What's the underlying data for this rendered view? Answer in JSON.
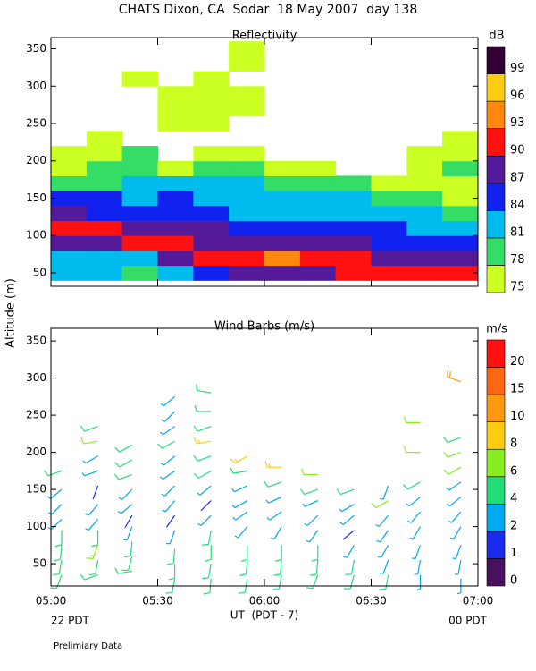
{
  "page": {
    "title": "CHATS Dixon, CA  Sodar  18 May 2007  day 138",
    "ylabel": "Altitude (m)",
    "xlabel": "UT  (PDT - 7)",
    "left_note": "22 PDT",
    "right_note": "00 PDT",
    "note": "Prelimiary Data"
  },
  "chart_data": [
    {
      "type": "contour",
      "title": "Reflectivity",
      "colorbar_label": "dB",
      "xlim": [
        5,
        7
      ],
      "xticks": [
        5,
        5.5,
        6,
        6.5,
        7
      ],
      "ylim": [
        32,
        365
      ],
      "yticks": [
        50,
        100,
        150,
        200,
        250,
        300,
        350
      ],
      "levels": [
        75,
        78,
        81,
        84,
        87,
        90,
        93,
        96,
        99
      ],
      "colors": [
        "#ccff22",
        "#33dd66",
        "#00bbee",
        "#1122ee",
        "#551a99",
        "#ff1111",
        "#ff8811",
        "#ffcc11",
        "#330033"
      ],
      "x_edges": [
        5,
        5.167,
        5.333,
        5.5,
        5.667,
        5.833,
        6,
        6.167,
        6.333,
        6.5,
        6.667,
        6.833,
        7
      ],
      "y_edges": [
        40,
        60,
        80,
        100,
        120,
        140,
        160,
        180,
        200,
        220,
        240,
        260,
        280,
        300,
        320,
        340,
        360
      ],
      "values": [
        [
          81,
          81,
          78,
          81,
          84,
          87,
          87,
          87,
          90,
          90,
          90,
          90
        ],
        [
          81,
          81,
          81,
          87,
          90,
          90,
          93,
          90,
          90,
          87,
          87,
          87
        ],
        [
          87,
          87,
          90,
          90,
          87,
          87,
          87,
          87,
          87,
          84,
          84,
          84
        ],
        [
          90,
          90,
          87,
          87,
          87,
          84,
          84,
          84,
          84,
          84,
          81,
          81
        ],
        [
          87,
          84,
          84,
          84,
          84,
          81,
          81,
          81,
          81,
          81,
          81,
          78
        ],
        [
          84,
          84,
          81,
          84,
          81,
          81,
          81,
          81,
          81,
          78,
          78,
          75
        ],
        [
          78,
          78,
          81,
          81,
          81,
          81,
          78,
          78,
          78,
          75,
          75,
          75
        ],
        [
          75,
          78,
          78,
          75,
          78,
          78,
          75,
          75,
          null,
          null,
          75,
          78
        ],
        [
          75,
          75,
          78,
          null,
          75,
          75,
          null,
          null,
          null,
          null,
          75,
          75
        ],
        [
          null,
          75,
          null,
          null,
          null,
          null,
          null,
          null,
          null,
          null,
          null,
          75
        ],
        [
          null,
          null,
          null,
          75,
          75,
          null,
          null,
          null,
          null,
          null,
          null,
          null
        ],
        [
          null,
          null,
          null,
          75,
          75,
          75,
          null,
          null,
          null,
          null,
          null,
          null
        ],
        [
          null,
          null,
          null,
          75,
          75,
          75,
          null,
          null,
          null,
          null,
          null,
          null
        ],
        [
          null,
          null,
          75,
          null,
          75,
          null,
          null,
          null,
          null,
          null,
          null,
          null
        ],
        [
          null,
          null,
          null,
          null,
          null,
          75,
          null,
          null,
          null,
          null,
          null,
          null
        ],
        [
          null,
          null,
          null,
          null,
          null,
          75,
          null,
          null,
          null,
          null,
          null,
          null
        ]
      ]
    },
    {
      "type": "barbs",
      "title": "Wind Barbs (m/s)",
      "colorbar_label": "m/s",
      "xlim": [
        5,
        7
      ],
      "xticks": [
        {
          "value": 5,
          "label": "05:00"
        },
        {
          "value": 5.5,
          "label": "05:30"
        },
        {
          "value": 6,
          "label": "06:00"
        },
        {
          "value": 6.5,
          "label": "06:30"
        },
        {
          "value": 7,
          "label": "07:00"
        }
      ],
      "ylim": [
        20,
        367
      ],
      "yticks": [
        50,
        100,
        150,
        200,
        250,
        300,
        350
      ],
      "levels": [
        0,
        1,
        2,
        4,
        6,
        8,
        10,
        15,
        20
      ],
      "colors": [
        "#4a1060",
        "#1a2aee",
        "#00aaee",
        "#22dd77",
        "#88ee22",
        "#ffcc11",
        "#ff9911",
        "#ff6611",
        "#ff1111"
      ],
      "columns": [
        {
          "x": 5.05,
          "y": [
            35,
            55,
            75,
            95,
            110,
            130,
            150,
            175
          ],
          "speed": [
            5,
            5,
            5,
            5,
            3,
            3,
            3,
            4
          ],
          "direction": [
            200,
            190,
            185,
            180,
            225,
            225,
            230,
            250
          ]
        },
        {
          "x": 5.22,
          "y": [
            35,
            55,
            75,
            95,
            110,
            130,
            155,
            175,
            195,
            215,
            235
          ],
          "speed": [
            4,
            5,
            7,
            5,
            3,
            3,
            1,
            3,
            3,
            6,
            4
          ],
          "direction": [
            250,
            190,
            200,
            180,
            220,
            220,
            200,
            250,
            240,
            260,
            250
          ]
        },
        {
          "x": 5.38,
          "y": [
            40,
            60,
            80,
            100,
            115,
            130,
            150,
            170,
            190,
            210
          ],
          "speed": [
            5,
            5,
            4,
            3,
            1,
            3,
            3,
            4,
            4,
            4
          ],
          "direction": [
            260,
            195,
            185,
            200,
            210,
            230,
            225,
            250,
            240,
            240
          ]
        },
        {
          "x": 5.58,
          "y": [
            30,
            50,
            70,
            95,
            115,
            135,
            155,
            175,
            195,
            215,
            235,
            255,
            275
          ],
          "speed": [
            5,
            5,
            4,
            3,
            1,
            3,
            3,
            3,
            3,
            4,
            3,
            3,
            3
          ],
          "direction": [
            190,
            180,
            185,
            200,
            215,
            220,
            225,
            235,
            230,
            240,
            235,
            225,
            230
          ]
        },
        {
          "x": 5.75,
          "y": [
            30,
            50,
            75,
            95,
            115,
            135,
            155,
            175,
            195,
            215,
            235,
            255,
            280
          ],
          "speed": [
            5,
            5,
            5,
            4,
            3,
            1,
            3,
            4,
            4,
            8,
            5,
            5,
            5
          ],
          "direction": [
            185,
            190,
            180,
            190,
            225,
            225,
            230,
            240,
            250,
            260,
            250,
            270,
            280
          ]
        },
        {
          "x": 5.92,
          "y": [
            30,
            55,
            75,
            100,
            120,
            135,
            155,
            175,
            195
          ],
          "speed": [
            5,
            4,
            4,
            3,
            3,
            3,
            3,
            4,
            8
          ],
          "direction": [
            190,
            185,
            180,
            220,
            235,
            240,
            245,
            260,
            240
          ]
        },
        {
          "x": 6.08,
          "y": [
            35,
            55,
            75,
            100,
            120,
            140,
            160,
            180
          ],
          "speed": [
            5,
            5,
            5,
            3,
            3,
            3,
            4,
            8
          ],
          "direction": [
            190,
            185,
            180,
            210,
            235,
            245,
            250,
            270
          ]
        },
        {
          "x": 6.25,
          "y": [
            35,
            55,
            75,
            95,
            115,
            135,
            150,
            170
          ],
          "speed": [
            4,
            4,
            4,
            3,
            3,
            3,
            4,
            6
          ],
          "direction": [
            200,
            185,
            180,
            215,
            225,
            245,
            250,
            270
          ]
        },
        {
          "x": 6.42,
          "y": [
            35,
            55,
            75,
            95,
            115,
            130,
            150
          ],
          "speed": [
            4,
            4,
            3,
            1,
            3,
            3,
            4
          ],
          "direction": [
            195,
            190,
            210,
            230,
            230,
            240,
            250
          ]
        },
        {
          "x": 6.58,
          "y": [
            35,
            55,
            75,
            95,
            115,
            135,
            155
          ],
          "speed": [
            4,
            3,
            3,
            3,
            3,
            6,
            3
          ],
          "direction": [
            190,
            200,
            210,
            215,
            220,
            240,
            200
          ]
        },
        {
          "x": 6.73,
          "y": [
            35,
            55,
            75,
            100,
            120,
            140,
            160,
            200,
            240
          ],
          "speed": [
            3,
            3,
            3,
            3,
            3,
            3,
            4,
            6,
            6
          ],
          "direction": [
            180,
            190,
            200,
            210,
            220,
            230,
            240,
            270,
            270
          ]
        },
        {
          "x": 6.92,
          "y": [
            30,
            55,
            75,
            100,
            120,
            140,
            160,
            180,
            200,
            220,
            295
          ],
          "speed": [
            3,
            3,
            3,
            3,
            3,
            3,
            3,
            6,
            6,
            5,
            10
          ],
          "direction": [
            180,
            190,
            200,
            210,
            220,
            230,
            235,
            240,
            250,
            250,
            290
          ]
        }
      ]
    }
  ]
}
